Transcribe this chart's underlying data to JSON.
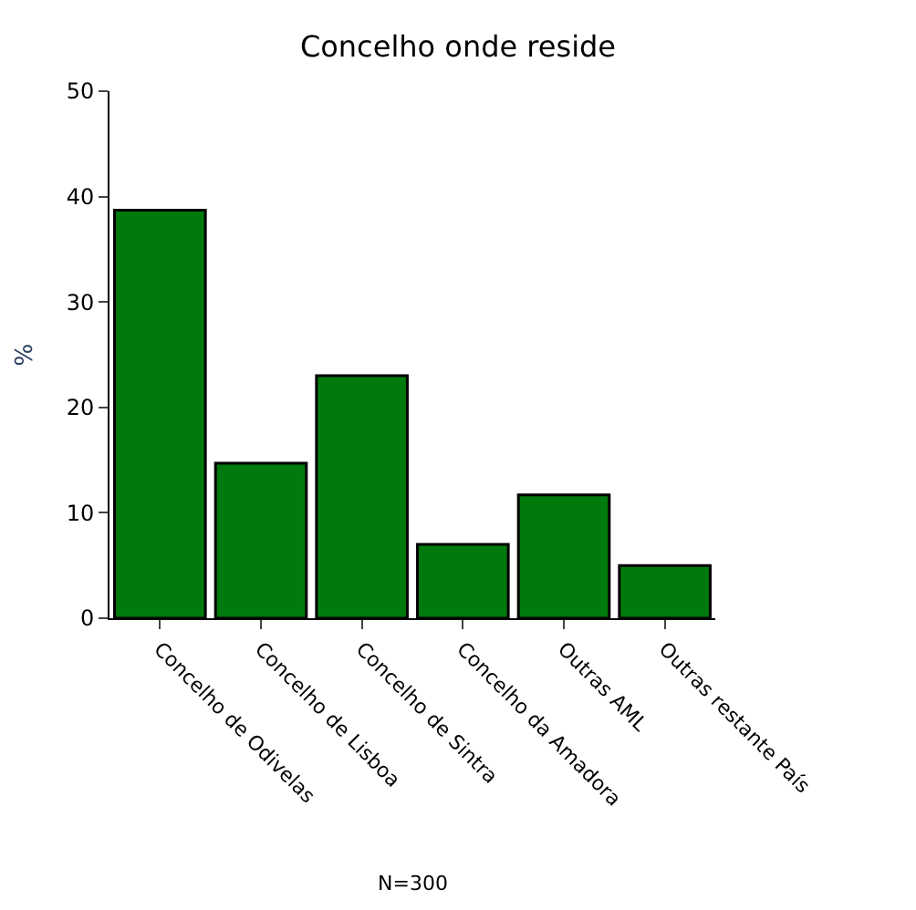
{
  "chart_data": {
    "type": "bar",
    "title": "Concelho onde reside",
    "ylabel": "%",
    "categories": [
      "Concelho de Odivelas",
      "Concelho de Lisboa",
      "Concelho de Sintra",
      "Concelho da Amadora",
      "Outras AML",
      "Outras restante País"
    ],
    "values": [
      38.7,
      14.7,
      23.0,
      7.0,
      11.7,
      5.0
    ],
    "color": "#007a0c",
    "ylim": [
      0,
      50
    ],
    "yticks": [
      0,
      10,
      20,
      30,
      40,
      50
    ],
    "legend": false,
    "annotations": [
      "N=300"
    ]
  }
}
